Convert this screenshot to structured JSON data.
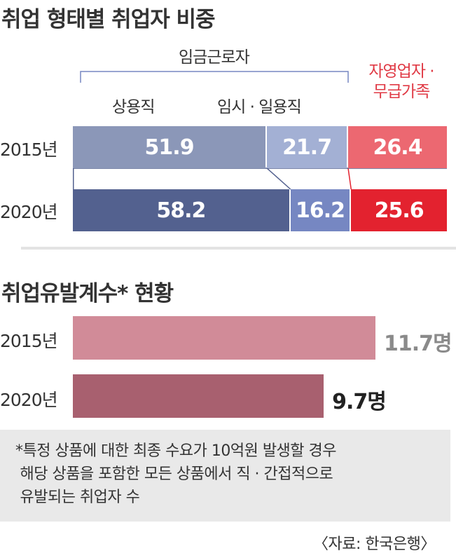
{
  "chart_data": [
    {
      "type": "bar",
      "title": "취업 형태별 취업자 비중",
      "group_label": "임금근로자",
      "categories": [
        "2015년",
        "2020년"
      ],
      "series": [
        {
          "name": "상용직",
          "values": [
            51.9,
            58.2
          ],
          "colors": [
            "#8b97b8",
            "#53618f"
          ]
        },
        {
          "name": "임시 · 일용직",
          "values": [
            21.7,
            16.2
          ],
          "colors": [
            "#a3b0d4",
            "#7687c2"
          ]
        },
        {
          "name": "자영업자 · 무급가족",
          "name_line1": "자영업자 ·",
          "name_line2": "무급가족",
          "values": [
            26.4,
            25.6
          ],
          "colors": [
            "#ec6871",
            "#e3222f"
          ]
        }
      ],
      "stacked": true,
      "xlim": [
        0,
        100
      ]
    },
    {
      "type": "bar",
      "orientation": "horizontal",
      "title": "취업유발계수* 현황",
      "categories": [
        "2015년",
        "2020년"
      ],
      "values": [
        11.7,
        9.7
      ],
      "value_labels": [
        "11.7명",
        "9.7명"
      ],
      "colors": [
        "#d18b98",
        "#a8606f"
      ],
      "label_colors": [
        "#8a8a8a",
        "#222222"
      ]
    }
  ],
  "note": {
    "lines": [
      "*특정 상품에 대한 최종 수요가 10억원 발생할 경우",
      " 해당 상품을 포함한 모든 상품에서 직 · 간접적으로",
      " 유발되는 취업자 수"
    ]
  },
  "source": "〈자료: 한국은행〉"
}
